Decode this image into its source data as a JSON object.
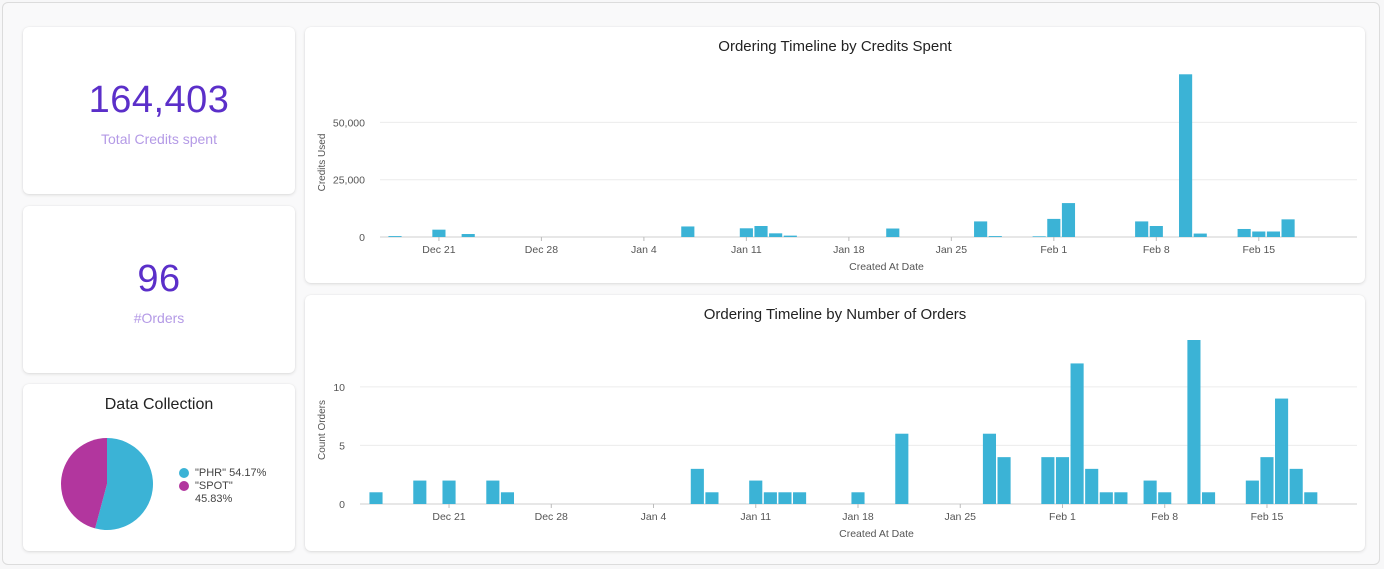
{
  "kpis": [
    {
      "value": "164,403",
      "label": "Total Credits spent"
    },
    {
      "value": "96",
      "label": "#Orders"
    }
  ],
  "pie": {
    "title": "Data Collection",
    "slices": [
      {
        "label": "\"PHR\"",
        "pct_text": "54.17%",
        "value": 54.17,
        "color": "#3bb3d6"
      },
      {
        "label": "\"SPOT\"",
        "pct_text": "45.83%",
        "value": 45.83,
        "color": "#b2369e"
      }
    ]
  },
  "chart_data": [
    {
      "type": "bar",
      "title": "Ordering Timeline by Credits Spent",
      "xlabel": "Created At Date",
      "ylabel": "Credits Used",
      "ylim": [
        0,
        72000
      ],
      "yticks": [
        0,
        25000,
        50000
      ],
      "ytick_labels": [
        "0",
        "25,000",
        "50,000"
      ],
      "x_start": "2020-12-18",
      "x_end": "2021-02-20",
      "xticks": [
        {
          "date": "2020-12-21",
          "label": "Dec 21"
        },
        {
          "date": "2020-12-28",
          "label": "Dec 28"
        },
        {
          "date": "2021-01-04",
          "label": "Jan 4"
        },
        {
          "date": "2021-01-11",
          "label": "Jan 11"
        },
        {
          "date": "2021-01-18",
          "label": "Jan 18"
        },
        {
          "date": "2021-01-25",
          "label": "Jan 25"
        },
        {
          "date": "2021-02-01",
          "label": "Feb 1"
        },
        {
          "date": "2021-02-08",
          "label": "Feb 8"
        },
        {
          "date": "2021-02-15",
          "label": "Feb 15"
        }
      ],
      "color": "#3bb3d6",
      "bars": [
        {
          "date": "2020-12-18",
          "value": 400
        },
        {
          "date": "2020-12-21",
          "value": 3200
        },
        {
          "date": "2020-12-23",
          "value": 1300
        },
        {
          "date": "2021-01-07",
          "value": 4600
        },
        {
          "date": "2021-01-11",
          "value": 3800
        },
        {
          "date": "2021-01-12",
          "value": 4800
        },
        {
          "date": "2021-01-13",
          "value": 1600
        },
        {
          "date": "2021-01-14",
          "value": 600
        },
        {
          "date": "2021-01-21",
          "value": 3700
        },
        {
          "date": "2021-01-27",
          "value": 6800
        },
        {
          "date": "2021-01-28",
          "value": 400
        },
        {
          "date": "2021-01-31",
          "value": 300
        },
        {
          "date": "2021-02-01",
          "value": 7900
        },
        {
          "date": "2021-02-02",
          "value": 14800
        },
        {
          "date": "2021-02-07",
          "value": 6800
        },
        {
          "date": "2021-02-08",
          "value": 4800
        },
        {
          "date": "2021-02-10",
          "value": 71000
        },
        {
          "date": "2021-02-11",
          "value": 1500
        },
        {
          "date": "2021-02-14",
          "value": 3500
        },
        {
          "date": "2021-02-15",
          "value": 2400
        },
        {
          "date": "2021-02-16",
          "value": 2400
        },
        {
          "date": "2021-02-17",
          "value": 7700
        }
      ]
    },
    {
      "type": "bar",
      "title": "Ordering Timeline by Number of Orders",
      "xlabel": "Created At Date",
      "ylabel": "Count Orders",
      "ylim": [
        0,
        14
      ],
      "yticks": [
        0,
        5,
        10
      ],
      "ytick_labels": [
        "0",
        "5",
        "10"
      ],
      "x_start": "2020-12-16",
      "x_end": "2021-02-20",
      "xticks": [
        {
          "date": "2020-12-21",
          "label": "Dec 21"
        },
        {
          "date": "2020-12-28",
          "label": "Dec 28"
        },
        {
          "date": "2021-01-04",
          "label": "Jan 4"
        },
        {
          "date": "2021-01-11",
          "label": "Jan 11"
        },
        {
          "date": "2021-01-18",
          "label": "Jan 18"
        },
        {
          "date": "2021-01-25",
          "label": "Jan 25"
        },
        {
          "date": "2021-02-01",
          "label": "Feb 1"
        },
        {
          "date": "2021-02-08",
          "label": "Feb 8"
        },
        {
          "date": "2021-02-15",
          "label": "Feb 15"
        }
      ],
      "color": "#3bb3d6",
      "bars": [
        {
          "date": "2020-12-16",
          "value": 1
        },
        {
          "date": "2020-12-19",
          "value": 2
        },
        {
          "date": "2020-12-21",
          "value": 2
        },
        {
          "date": "2020-12-24",
          "value": 2
        },
        {
          "date": "2020-12-25",
          "value": 1
        },
        {
          "date": "2021-01-07",
          "value": 3
        },
        {
          "date": "2021-01-08",
          "value": 1
        },
        {
          "date": "2021-01-11",
          "value": 2
        },
        {
          "date": "2021-01-12",
          "value": 1
        },
        {
          "date": "2021-01-13",
          "value": 1
        },
        {
          "date": "2021-01-14",
          "value": 1
        },
        {
          "date": "2021-01-18",
          "value": 1
        },
        {
          "date": "2021-01-21",
          "value": 6
        },
        {
          "date": "2021-01-27",
          "value": 6
        },
        {
          "date": "2021-01-28",
          "value": 4
        },
        {
          "date": "2021-01-31",
          "value": 4
        },
        {
          "date": "2021-02-01",
          "value": 4
        },
        {
          "date": "2021-02-02",
          "value": 12
        },
        {
          "date": "2021-02-03",
          "value": 3
        },
        {
          "date": "2021-02-04",
          "value": 1
        },
        {
          "date": "2021-02-05",
          "value": 1
        },
        {
          "date": "2021-02-07",
          "value": 2
        },
        {
          "date": "2021-02-08",
          "value": 1
        },
        {
          "date": "2021-02-10",
          "value": 14
        },
        {
          "date": "2021-02-11",
          "value": 1
        },
        {
          "date": "2021-02-14",
          "value": 2
        },
        {
          "date": "2021-02-15",
          "value": 4
        },
        {
          "date": "2021-02-16",
          "value": 9
        },
        {
          "date": "2021-02-17",
          "value": 3
        },
        {
          "date": "2021-02-18",
          "value": 1
        }
      ]
    }
  ]
}
